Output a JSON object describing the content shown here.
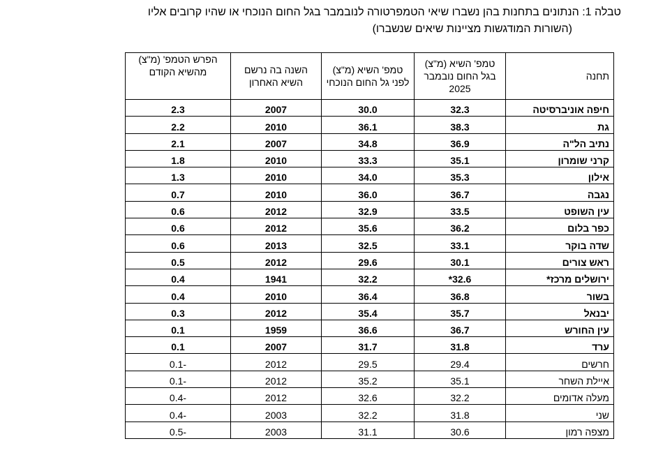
{
  "header": {
    "title": "טבלה 1: הנתונים בתחנות בהן נשברו שיאי הטמפרטורה לנובמבר בגל החום הנוכחי או שהיו קרובים אליו",
    "subtitle": "(השורות המודגשות מציינות שיאים שנשברו)"
  },
  "table": {
    "columns": [
      "תחנה",
      "טמפ' השיא (מ\"צ) בגל החום נובמבר 2025",
      "טמפ' השיא (מ\"צ) לפני גל החום הנוכחי",
      "השנה בה נרשם השיא האחרון",
      "הפרש הטמפ' (מ\"צ) מהשיא הקודם"
    ],
    "rows": [
      {
        "bold": true,
        "cells": [
          "חיפה אוניברסיטה",
          "32.3",
          "30.0",
          "2007",
          "2.3"
        ]
      },
      {
        "bold": true,
        "cells": [
          "גת",
          "38.3",
          "36.1",
          "2010",
          "2.2"
        ]
      },
      {
        "bold": true,
        "cells": [
          "נתיב הל\"ה",
          "36.9",
          "34.8",
          "2007",
          "2.1"
        ]
      },
      {
        "bold": true,
        "cells": [
          "קרני שומרון",
          "35.1",
          "33.3",
          "2010",
          "1.8"
        ]
      },
      {
        "bold": true,
        "cells": [
          "אילון",
          "35.3",
          "34.0",
          "2010",
          "1.3"
        ]
      },
      {
        "bold": true,
        "cells": [
          "נגבה",
          "36.7",
          "36.0",
          "2010",
          "0.7"
        ]
      },
      {
        "bold": true,
        "cells": [
          "עין השופט",
          "33.5",
          "32.9",
          "2012",
          "0.6"
        ]
      },
      {
        "bold": true,
        "cells": [
          "כפר בלום",
          "36.2",
          "35.6",
          "2012",
          "0.6"
        ]
      },
      {
        "bold": true,
        "cells": [
          "שדה בוקר",
          "33.1",
          "32.5",
          "2013",
          "0.6"
        ]
      },
      {
        "bold": true,
        "cells": [
          "ראש צורים",
          "30.1",
          "29.6",
          "2012",
          "0.5"
        ]
      },
      {
        "bold": true,
        "cells": [
          "ירושלים מרכז*",
          "32.6*",
          "32.2",
          "1941",
          "0.4"
        ]
      },
      {
        "bold": true,
        "cells": [
          "בשור",
          "36.8",
          "36.4",
          "2010",
          "0.4"
        ]
      },
      {
        "bold": true,
        "cells": [
          "יבנאל",
          "35.7",
          "35.4",
          "2012",
          "0.3"
        ]
      },
      {
        "bold": true,
        "cells": [
          "עין החורש",
          "36.7",
          "36.6",
          "1959",
          "0.1"
        ]
      },
      {
        "bold": true,
        "cells": [
          "ערד",
          "31.8",
          "31.7",
          "2007",
          "0.1"
        ]
      },
      {
        "bold": false,
        "cells": [
          "חרשים",
          "29.4",
          "29.5",
          "2012",
          "-0.1"
        ]
      },
      {
        "bold": false,
        "cells": [
          "איילת השחר",
          "35.1",
          "35.2",
          "2012",
          "-0.1"
        ]
      },
      {
        "bold": false,
        "cells": [
          "מעלה אדומים",
          "32.2",
          "32.6",
          "2012",
          "-0.4"
        ]
      },
      {
        "bold": false,
        "cells": [
          "שני",
          "31.8",
          "32.2",
          "2003",
          "-0.4"
        ]
      },
      {
        "bold": false,
        "cells": [
          "מצפה רמון",
          "30.6",
          "31.1",
          "2003",
          "-0.5"
        ]
      }
    ]
  }
}
